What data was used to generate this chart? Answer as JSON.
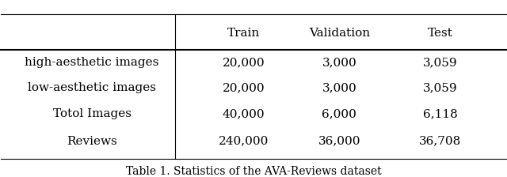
{
  "col_headers": [
    "",
    "Train",
    "Validation",
    "Test"
  ],
  "rows": [
    [
      "high-aesthetic images",
      "20,000",
      "3,000",
      "3,059"
    ],
    [
      "low-aesthetic images",
      "20,000",
      "3,000",
      "3,059"
    ],
    [
      "Totol Images",
      "40,000",
      "6,000",
      "6,118"
    ],
    [
      "Reviews",
      "240,000",
      "36,000",
      "36,708"
    ]
  ],
  "caption": "Table 1. Statistics of the AVA-Reviews dataset",
  "background_color": "#ffffff",
  "text_color": "#000000",
  "font_size": 11,
  "caption_font_size": 10
}
